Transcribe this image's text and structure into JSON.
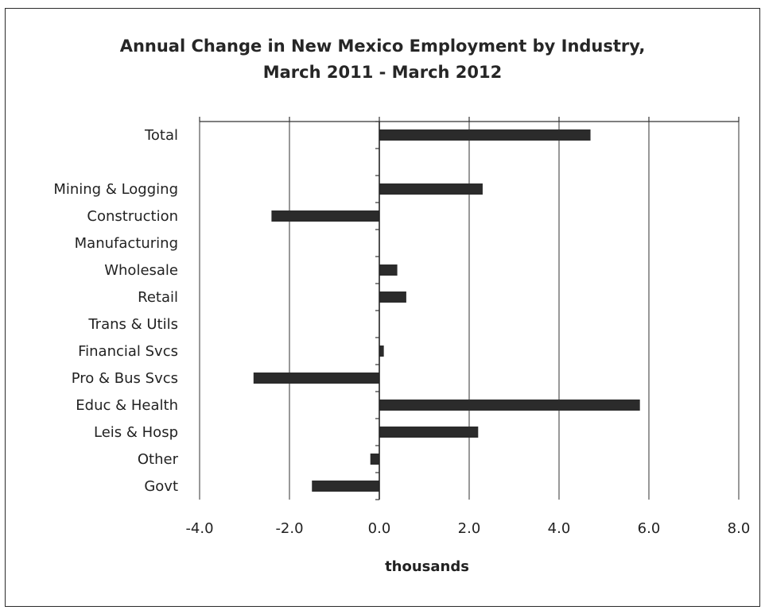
{
  "chart_data": {
    "type": "bar",
    "orientation": "horizontal",
    "title_lines": [
      "Annual Change in New Mexico Employment by Industry,",
      "March 2011 - March 2012"
    ],
    "xlabel": "thousands",
    "xlim": [
      -4.0,
      8.0
    ],
    "x_ticks": [
      "-4.0",
      "-2.0",
      "0.0",
      "2.0",
      "4.0",
      "6.0",
      "8.0"
    ],
    "grid": "vertical",
    "legend": "none",
    "categories": [
      "Total",
      "",
      "Mining & Logging",
      "Construction",
      "Manufacturing",
      "Wholesale",
      "Retail",
      "Trans & Utils",
      "Financial Svcs",
      "Pro & Bus Svcs",
      "Educ & Health",
      "Leis & Hosp",
      "Other",
      "Govt"
    ],
    "values": [
      4.7,
      null,
      2.3,
      -2.4,
      0.0,
      0.4,
      0.6,
      0.0,
      0.1,
      -2.8,
      5.8,
      2.2,
      -0.2,
      -1.5
    ],
    "bar_color": "#2b2b2b"
  }
}
